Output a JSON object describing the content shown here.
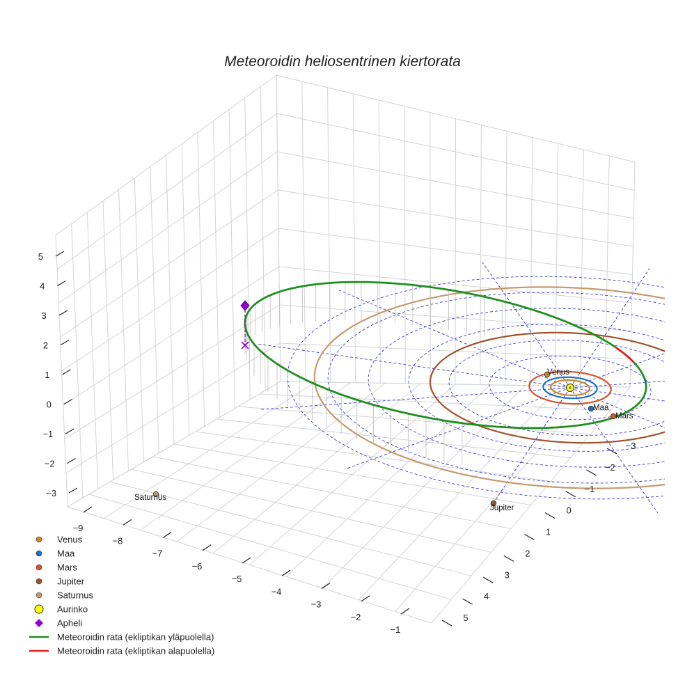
{
  "chart_data": {
    "type": "3d-line",
    "title": "Meteoroidin heliosentrinen kiertorata",
    "x_ticks": [
      "−9",
      "−8",
      "−7",
      "−6",
      "−5",
      "−4",
      "−3",
      "−2",
      "−1"
    ],
    "y_ticks": [
      "−3",
      "−2",
      "−1",
      "0",
      "1",
      "2",
      "3",
      "4",
      "5"
    ],
    "z_ticks": [
      "5",
      "4",
      "3",
      "2",
      "1",
      "0",
      "−1",
      "−2",
      "−3"
    ],
    "xlim": [
      -9.5,
      -0.5
    ],
    "ylim": [
      -3.5,
      5.5
    ],
    "zlim": [
      -3.5,
      5.5
    ],
    "planets": [
      {
        "name": "Venus",
        "color": "#c8862a",
        "orbit_radius_au": 0.72
      },
      {
        "name": "Maa",
        "color": "#1f6fc4",
        "orbit_radius_au": 1.0
      },
      {
        "name": "Mars",
        "color": "#d4552a",
        "orbit_radius_au": 1.52
      },
      {
        "name": "Jupiter",
        "color": "#a0522d",
        "orbit_radius_au": 5.2
      },
      {
        "name": "Saturnus",
        "color": "#c49a6c",
        "orbit_radius_au": 9.5
      }
    ],
    "sun": {
      "name": "Aurinko",
      "color": "#ffff00"
    },
    "aphelion": {
      "name": "Apheli",
      "color": "#9400d3"
    },
    "orbit_series": [
      {
        "name": "Meteoroidin rata (ekliptikan yläpuolella)",
        "color": "#1f8f1f"
      },
      {
        "name": "Meteoroidin rata (ekliptikan alapuolella)",
        "color": "#e02020"
      }
    ],
    "legend": {
      "position": "bottom-left",
      "entries": [
        {
          "label": "Venus",
          "kind": "dot",
          "color": "#c8862a"
        },
        {
          "label": "Maa",
          "kind": "dot",
          "color": "#1f6fc4"
        },
        {
          "label": "Mars",
          "kind": "dot",
          "color": "#d4552a"
        },
        {
          "label": "Jupiter",
          "kind": "dot",
          "color": "#a0522d"
        },
        {
          "label": "Saturnus",
          "kind": "dot",
          "color": "#c49a6c"
        },
        {
          "label": "Aurinko",
          "kind": "sun",
          "color": "#ffff00"
        },
        {
          "label": "Apheli",
          "kind": "diamond",
          "color": "#9400d3"
        },
        {
          "label": "Meteoroidin rata (ekliptikan yläpuolella)",
          "kind": "line",
          "color": "#1f8f1f"
        },
        {
          "label": "Meteoroidin rata (ekliptikan alapuolella)",
          "kind": "line",
          "color": "#e02020"
        }
      ]
    },
    "grid": true
  }
}
